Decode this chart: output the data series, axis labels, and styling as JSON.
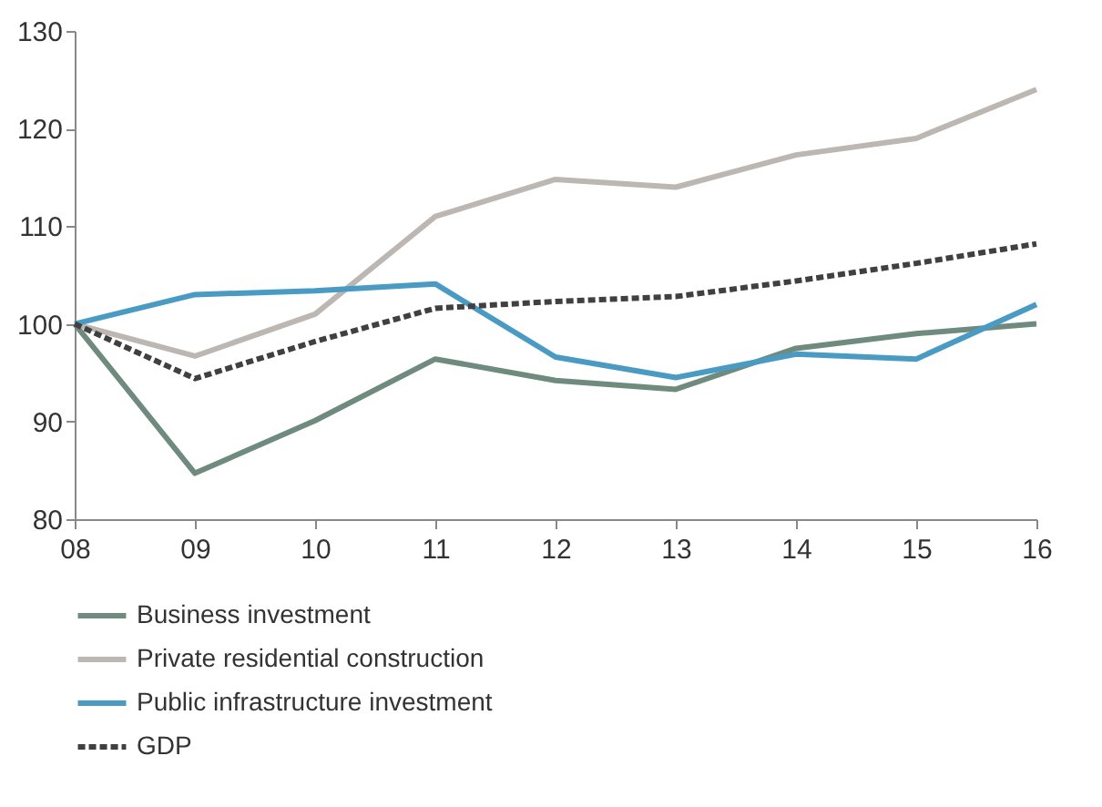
{
  "chart_data": {
    "type": "line",
    "categories": [
      "08",
      "09",
      "10",
      "11",
      "12",
      "13",
      "14",
      "15",
      "16"
    ],
    "series": [
      {
        "name": "Business investment",
        "color": "#6e8b7d",
        "line_style": "solid",
        "values": [
          100,
          84.7,
          90.1,
          96.4,
          94.2,
          93.3,
          97.5,
          99,
          100
        ]
      },
      {
        "name": "Private residential construction",
        "color": "#bdb7b3",
        "line_style": "solid",
        "values": [
          100,
          96.7,
          101,
          111,
          114.8,
          114,
          117.3,
          119,
          124
        ]
      },
      {
        "name": "Public infrastructure investment",
        "color": "#4a9bc4",
        "line_style": "solid",
        "values": [
          100,
          103,
          103.4,
          104.1,
          96.6,
          94.5,
          96.9,
          96.4,
          102
        ]
      },
      {
        "name": "GDP",
        "color": "#404040",
        "line_style": "dashed",
        "values": [
          100,
          94.4,
          98.2,
          101.6,
          102.3,
          102.8,
          104.4,
          106.2,
          108.2
        ]
      }
    ],
    "ylim": [
      80,
      130
    ],
    "yticks": [
      80,
      90,
      100,
      110,
      120,
      130
    ],
    "grid": false,
    "legend": "bottom",
    "marker": "none"
  }
}
